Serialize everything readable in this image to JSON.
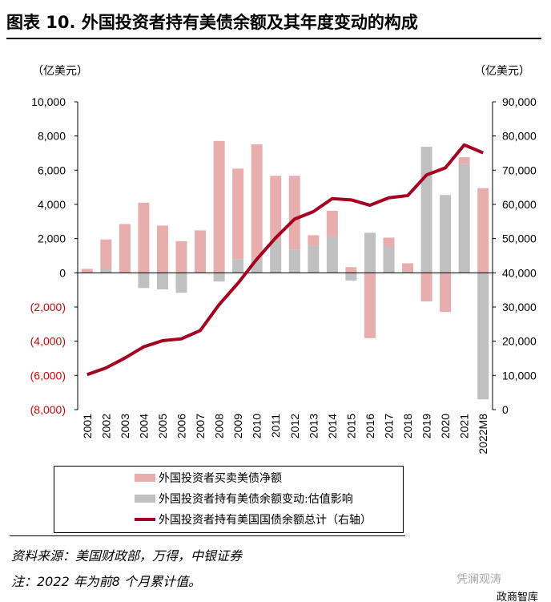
{
  "title": "图表 10. 外国投资者持有美债余额及其年度变动的构成",
  "source": "资料来源：美国财政部，万得，中银证券",
  "note": "注：2022 年为前8 个月累计值。",
  "watermark": "凭澜观涛",
  "watermark2": "政商智库",
  "colors": {
    "net": "#e8aeae",
    "valuation": "#c0c0c0",
    "total": "#a50021",
    "negative_tick": "#e00000"
  },
  "chart_data": {
    "type": "bar",
    "stacked": true,
    "categories": [
      "2001",
      "2002",
      "2003",
      "2004",
      "2005",
      "2006",
      "2007",
      "2008",
      "2009",
      "2010",
      "2011",
      "2012",
      "2013",
      "2014",
      "2015",
      "2016",
      "2017",
      "2018",
      "2019",
      "2020",
      "2021",
      "2022M8"
    ],
    "left_axis": {
      "unit": "（亿美元）",
      "ylim": [
        -8000,
        10000
      ],
      "ticks": [
        "(8,000)",
        "(6,000)",
        "(4,000)",
        "(2,000)",
        "0",
        "2,000",
        "4,000",
        "6,000",
        "8,000",
        "10,000"
      ]
    },
    "right_axis": {
      "unit": "（亿美元）",
      "ylim": [
        0,
        90000
      ],
      "ticks": [
        "0",
        "10,000",
        "20,000",
        "30,000",
        "40,000",
        "50,000",
        "60,000",
        "70,000",
        "80,000",
        "90,000"
      ]
    },
    "series": [
      {
        "name": "外国投资者买卖美债净额",
        "type": "bar",
        "axis": "left",
        "values": [
          230,
          1700,
          2850,
          4100,
          2760,
          1850,
          2480,
          7710,
          5310,
          6640,
          3770,
          4300,
          610,
          1480,
          330,
          -3820,
          520,
          480,
          -1670,
          -2290,
          400,
          4950
        ]
      },
      {
        "name": "外国投资者持有美债余额变动:估值影响",
        "type": "bar",
        "axis": "left",
        "values": [
          0,
          250,
          0,
          -890,
          -970,
          -1170,
          0,
          -510,
          780,
          870,
          1900,
          1370,
          1590,
          2150,
          -450,
          2340,
          1540,
          80,
          7370,
          4550,
          6360,
          -7400
        ]
      },
      {
        "name": "外国投资者持有美国国债余额总计（右轴）",
        "type": "line",
        "axis": "right",
        "values": [
          10240,
          12190,
          15070,
          18350,
          20150,
          20700,
          23130,
          30700,
          36950,
          43990,
          50230,
          55700,
          57900,
          61700,
          61330,
          59760,
          61940,
          62570,
          68600,
          70700,
          77400,
          75070
        ]
      }
    ]
  }
}
